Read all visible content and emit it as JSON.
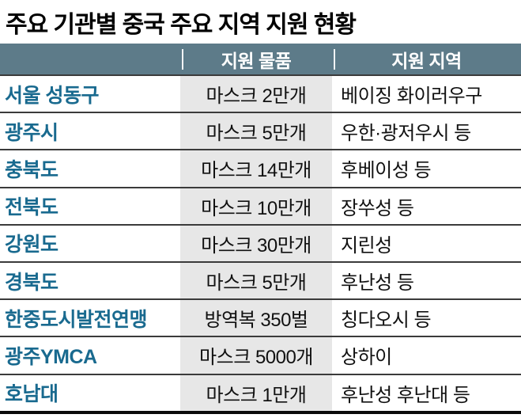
{
  "chart_data": {
    "type": "table",
    "title": "주요 기관별 중국 주요 지역 지원 현황",
    "columns": [
      "",
      "지원 물품",
      "지원 지역"
    ],
    "rows": [
      [
        "서울 성동구",
        "마스크 2만개",
        "베이징 화이러우구"
      ],
      [
        "광주시",
        "마스크 5만개",
        "우한·광저우시 등"
      ],
      [
        "충북도",
        "마스크 14만개",
        "후베이성 등"
      ],
      [
        "전북도",
        "마스크 10만개",
        "장쑤성 등"
      ],
      [
        "강원도",
        "마스크 30만개",
        "지린성"
      ],
      [
        "경북도",
        "마스크 5만개",
        "후난성 등"
      ],
      [
        "한중도시발전연맹",
        "방역복 350벌",
        "칭다오시 등"
      ],
      [
        "광주YMCA",
        "마스크 5000개",
        "상하이"
      ],
      [
        "호남대",
        "마스크 1만개",
        "후난성 후난대 등"
      ]
    ],
    "legend": null,
    "grid": "horizontal-rules"
  },
  "colors": {
    "header_bg": "#5d7b89",
    "header_text": "#ffffff",
    "org_text": "#196a8f",
    "item_column_bg": "#e7e7e7",
    "row_divider": "#3b3b3b",
    "bottom_border": "#0a0a0a",
    "title_text": "#000000"
  }
}
